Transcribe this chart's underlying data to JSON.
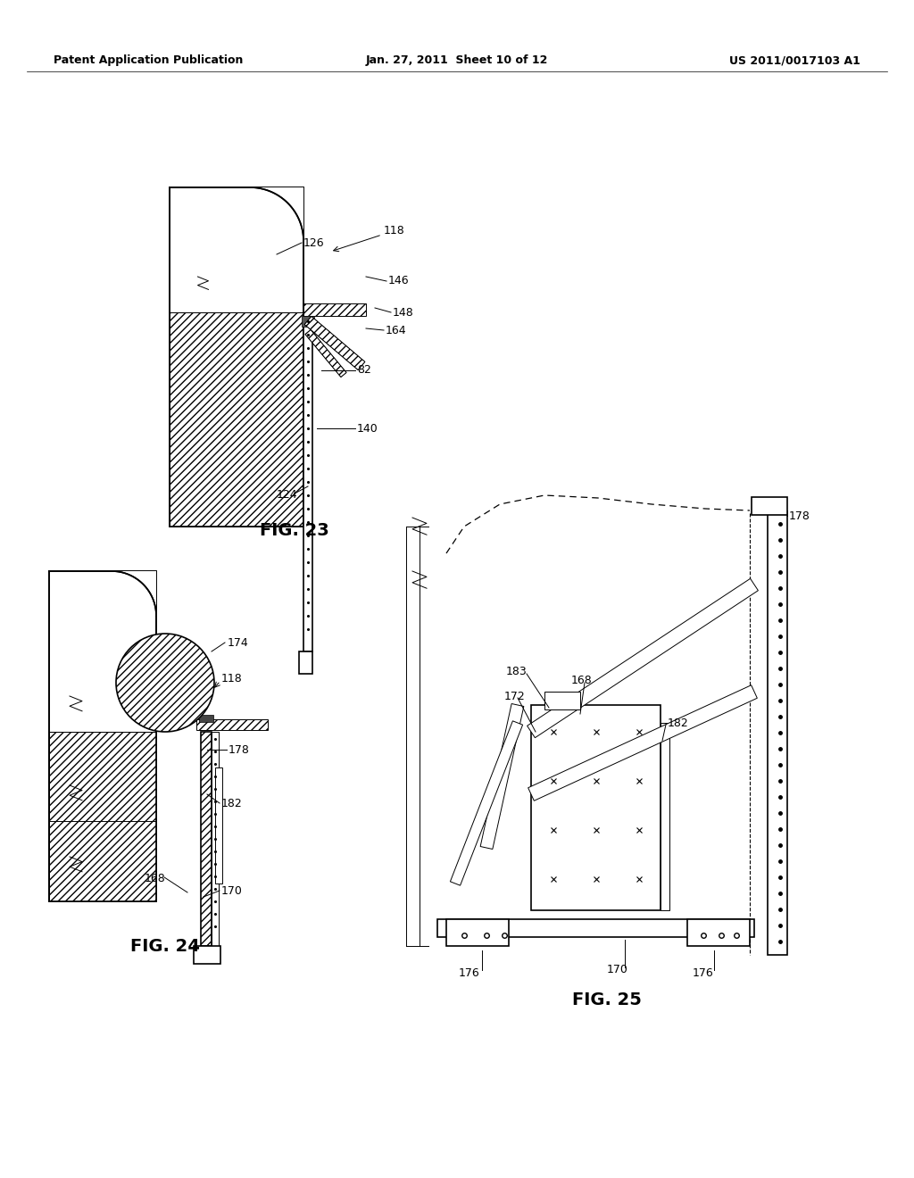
{
  "header_left": "Patent Application Publication",
  "header_mid": "Jan. 27, 2011  Sheet 10 of 12",
  "header_right": "US 2011/0017103 A1",
  "fig23_label": "FIG. 23",
  "fig24_label": "FIG. 24",
  "fig25_label": "FIG. 25",
  "background_color": "#ffffff"
}
